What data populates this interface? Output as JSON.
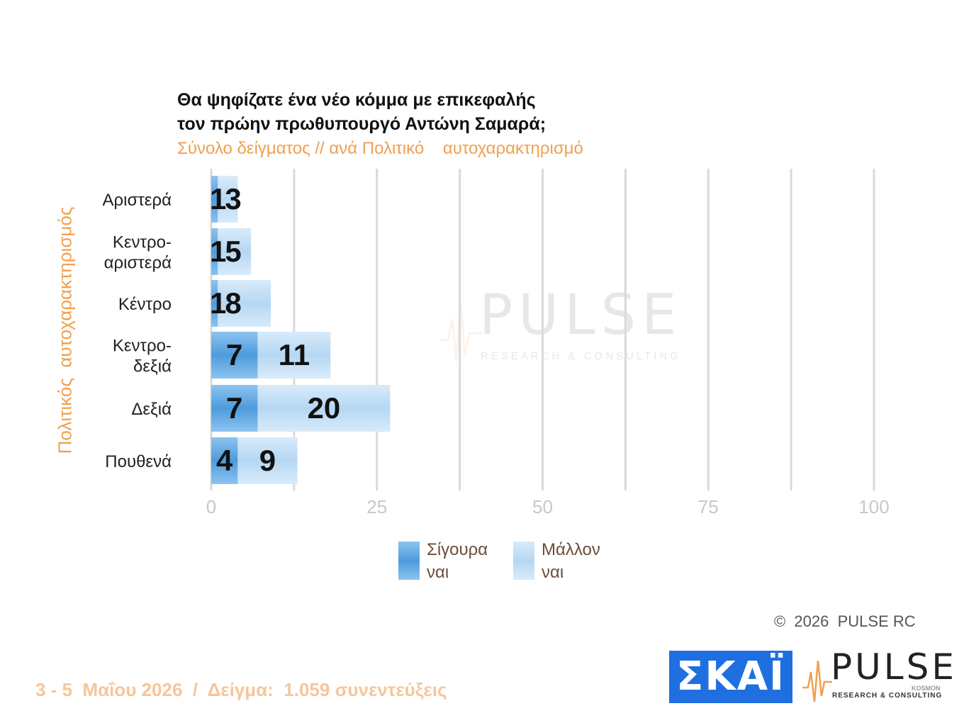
{
  "title_line1": "Θα ψηφίζατε ένα νέο κόμμα με επικεφαλής",
  "title_line2": "τον πρώην πρωθυπουργό Αντώνη Σαμαρά;",
  "subtitle": "Σύνολο δείγματος // ανά Πολιτικό    αυτοχαρακτηρισμό",
  "y_axis_title": "Πολιτικός  αυτοχαρακτηρισμός",
  "copyright": "©  2026  PULSE RC",
  "footer": "3 - 5  Μαΐου 2026  /  Δείγμα:  1.059 συνεντεύξεις",
  "logos": {
    "skai": "ΣΚΑΪ",
    "pulse": "PULSE",
    "pulse_sub": "RESEARCH & CONSULTING",
    "pulse_kosmon": "KOSMON"
  },
  "legend": [
    {
      "label": "Σίγουρα ναι"
    },
    {
      "label": "Μάλλον ναι"
    }
  ],
  "colors": {
    "series1": "#5aa3e0",
    "series2": "#bfdcf5",
    "accent": "#f0a050",
    "grid": "#d9d9d9",
    "tick": "#c8c8c8"
  },
  "chart_data": {
    "type": "bar",
    "orientation": "horizontal",
    "stacked": true,
    "categories": [
      [
        "Αριστερά"
      ],
      [
        "Κεντρο-",
        "αριστερά"
      ],
      [
        "Κέντρο"
      ],
      [
        "Κεντρο-",
        "δεξιά"
      ],
      [
        "Δεξιά"
      ],
      [
        "Πουθενά"
      ]
    ],
    "series": [
      {
        "name": "Σίγουρα ναι",
        "values": [
          1,
          1,
          1,
          7,
          7,
          4
        ]
      },
      {
        "name": "Μάλλον ναι",
        "values": [
          3,
          5,
          8,
          11,
          20,
          9
        ]
      }
    ],
    "data_labels": [
      [
        "1",
        "3"
      ],
      [
        "1",
        "5"
      ],
      [
        "1",
        "8"
      ],
      [
        "7",
        "11"
      ],
      [
        "7",
        "20"
      ],
      [
        "4",
        "9"
      ]
    ],
    "xlim": [
      0,
      100
    ],
    "xticks": [
      0,
      25,
      50,
      75,
      100
    ],
    "grid": true
  }
}
